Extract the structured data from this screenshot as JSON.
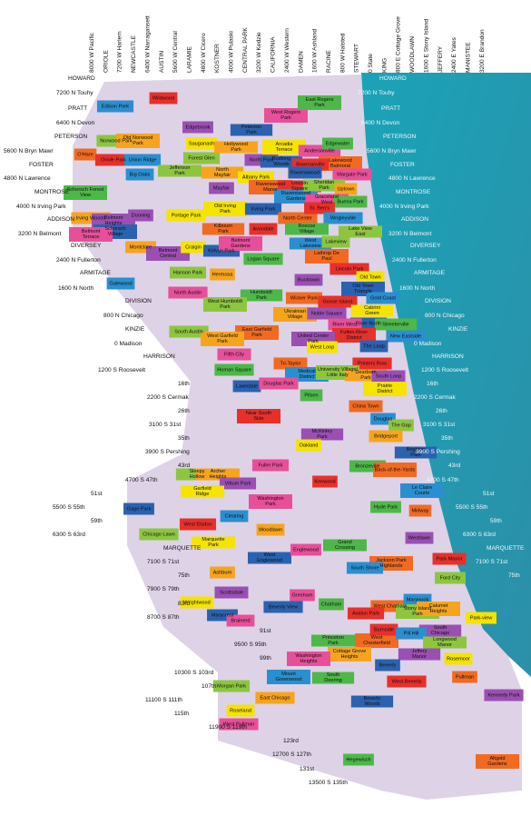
{
  "top_streets": [
    "8000 W Pacific",
    "ORIOLE",
    "7200 W Harlem",
    "NEWCASTLE",
    "6400 W Narragansett",
    "AUSTIN",
    "5600 W Central",
    "LARAMIE",
    "4800 W Cicero",
    "KOSTNER",
    "4000 W Pulaski",
    "CENTRAL PARK",
    "3200 W Kedzie",
    "CALIFORNIA",
    "2400 W Western",
    "DAMEN",
    "1600 W Ashland",
    "RACINE",
    "800 W Halsted",
    "STEWART",
    "0 State",
    "KING",
    "800 E Cottage Grove",
    "WOODLAWN",
    "1600 E Stony Island",
    "JEFFERY",
    "2400 E Yates",
    "MANISTEE",
    "3200 E Brandon"
  ],
  "west_streets": [
    "HOWARD",
    "7200 N  Touhy",
    "PRATT",
    "6400 N  Devon",
    "PETERSON",
    "5600 N  Bryn Mawr",
    "FOSTER",
    "4800 N  Lawrence",
    "MONTROSE",
    "4000 N  Irving Park",
    "ADDISON",
    "3200 N  Belmont",
    "DIVERSEY",
    "2400 N  Fullerton",
    "ARMITAGE",
    "1600 N  North",
    "DIVISION",
    "800 N  Chicago",
    "KINZIE",
    "0  Madison",
    "HARRISON",
    "1200 S  Roosevelt",
    "16th",
    "2200 S  Cermak",
    "26th",
    "3100 S  31st",
    "35th",
    "3900 S  Pershing",
    "43rd",
    "4700 S  47th",
    "51st",
    "5500 S  55th",
    "59th",
    "6300 S  63rd",
    "MARQUETTE",
    "7100 S  71st",
    "75th",
    "7900 S  79th",
    "83rd",
    "8700 S  87th",
    "91st",
    "9500 S  95th",
    "99th",
    "10300 S  103rd",
    "107th",
    "11100 S  111th",
    "115th",
    "11900 S  119th",
    "123rd",
    "12700 S  127th",
    "131st",
    "13500 S  135th"
  ],
  "lake_streets": [
    "HOWARD",
    "7200 N  Touhy",
    "PRATT",
    "6400 N  Devon",
    "PETERSON",
    "5600 N  Bryn Mawr",
    "FOSTER",
    "4800 N  Lawrence",
    "MONTROSE",
    "4000 N  Irving Park",
    "ADDISON",
    "3200 N  Belmont",
    "DIVERSEY",
    "2400 N  Fullerton",
    "ARMITAGE",
    "1600 N  North",
    "DIVISION",
    "800 N  Chicago",
    "KINZIE",
    "0  Madison",
    "HARRISON",
    "1200 S  Roosevelt",
    "16th",
    "2200 S  Cermak",
    "26th",
    "3100 S  31st",
    "35th",
    "3900 S  Pershing",
    "43rd",
    "4700 S  47th",
    "51st",
    "5500 S  55th",
    "59th",
    "6300 S  63rd",
    "MARQUETTE",
    "7100 S  71st",
    "75th"
  ],
  "neighborhoods": [
    "Wildwood",
    "Edison Park",
    "Norwood Park",
    "Old Norwood Park",
    "Edgebrook",
    "Sauganash",
    "Peterson Park",
    "West Rogers Park",
    "East Rogers Park",
    "O'Hare",
    "Oriole Park",
    "Union Ridge",
    "Forest Glen",
    "Hollywood Park",
    "North Park",
    "Arcadia Terrace",
    "Budlong Woods",
    "Andersonville",
    "Edgewater",
    "Lakewood Balmoral",
    "Bowmanville",
    "Big Oaks",
    "Jefferson Park",
    "North Mayfair",
    "Mayfair",
    "Albany Park",
    "Ravenswood",
    "Margate Park",
    "Schorsch Forest View",
    "Ravenswood Manor",
    "Lincoln Square",
    "Ravenswood Gardens",
    "Sheridan Park",
    "Uptown",
    "Dunning",
    "Old Irving Park",
    "Irving Park",
    "Graceland West",
    "Buena Park",
    "North Center",
    "St. Ben's",
    "Wrigleyville",
    "Lake View East",
    "Irving Woods",
    "Belmont Heights",
    "Portage Park",
    "Schorsch Village",
    "Belmont Terrace",
    "Roscoe Village",
    "Kilbourn Park",
    "Avondale",
    "West Lakeview",
    "Lakeview",
    "Montclare",
    "Belmont Central",
    "Craigin",
    "Kelvyn Park",
    "Belmont Gardens",
    "Logan Square",
    "Lathrop De Paul",
    "Lincoln Park",
    "Galewood",
    "Hanson Park",
    "Hermosa",
    "Bucktown",
    "Old Town",
    "Old Town Triangle",
    "North Austin",
    "Humboldt Park",
    "Wicker Park",
    "Goose Island",
    "Gold Coast",
    "West Humboldt Park",
    "Ukrainian Village",
    "Noble Square",
    "Cabrini Green",
    "River North",
    "River West",
    "Streeterville",
    "East Garfield Park",
    "Fulton River District",
    "New Eastside",
    "South Austin",
    "West Garfield Park",
    "United Center Park",
    "West Loop",
    "The Loop",
    "Fifth City",
    "Homan Square",
    "Tri-Taylor",
    "Printers Row",
    "Medical District",
    "University Village/ Little Italy",
    "Dearborn Park",
    "South Loop",
    "Prairie District",
    "Lawndale",
    "Douglas Park",
    "Pilsen",
    "China Town",
    "Near South Side",
    "Douglas",
    "The Gap",
    "Bridgeport",
    "McKinley Park",
    "Oakland",
    "Brighton Park",
    "Fuller Park",
    "Bronzeville",
    "Back-of-the-Yards",
    "Kenwood",
    "Le Claire Courts",
    "Sleepy Hollow",
    "Archer Heights",
    "Vittum Park",
    "Garfield Ridge",
    "Gage Park",
    "Washington Park",
    "Hyde Park",
    "Midway",
    "West Elsdon",
    "Clearing",
    "Chicago Lawn",
    "Woodlawn",
    "Westlawn",
    "Marquette Park",
    "West Englewood",
    "Englewood",
    "Grand Crossing",
    "Jackson Park Highlands",
    "Park Manor",
    "South Shore",
    "Ford City",
    "Ashburn",
    "Scottsdale",
    "Wrightwood",
    "Beverly View",
    "Gresham",
    "Chatham",
    "West Chatham",
    "Avalon Park",
    "Marynook",
    "Stony Island Park",
    "Calumet Heights",
    "South Chicago",
    "Park-view",
    "Marycrest",
    "Brainerd",
    "Princeton Park",
    "West Chesterfield",
    "Burnside",
    "Pill Hill",
    "Longwood Manor",
    "Cottage Grove Heights",
    "Jeffery Manor",
    "Rosemoor",
    "Beverly",
    "Washington Heights",
    "South Deering",
    "Pullman",
    "West Beverly",
    "Mount Greenwood",
    "Morgan Park",
    "East Chicago",
    "Kennedy Park",
    "Roseland",
    "Beverly Woods",
    "West Pullman",
    "Hegewisch",
    "Altgeld Gardens"
  ]
}
